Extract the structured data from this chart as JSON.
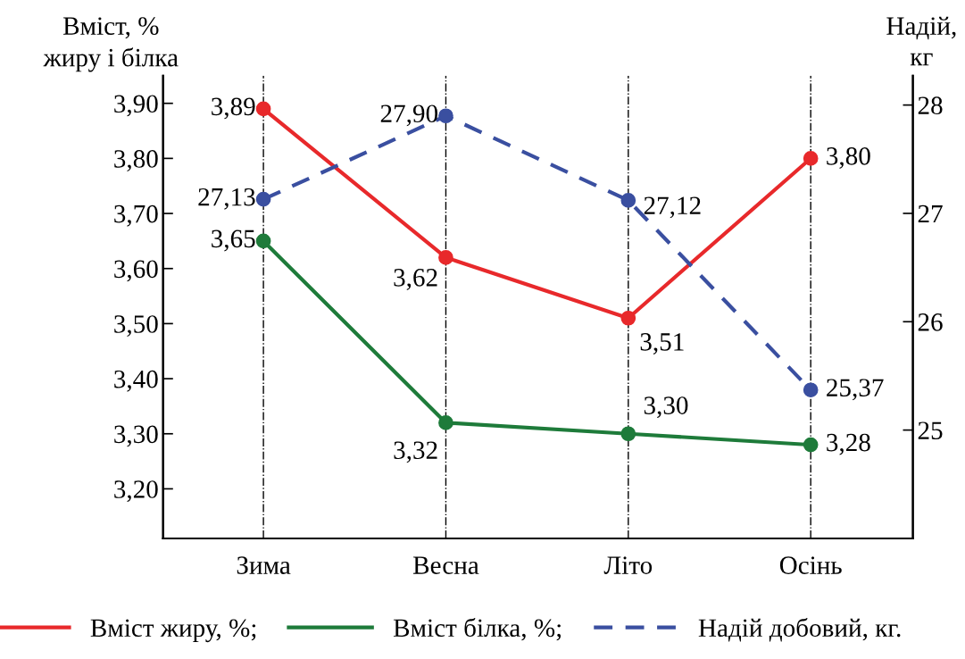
{
  "chart_data": {
    "type": "line",
    "categories": [
      "Зима",
      "Весна",
      "Літо",
      "Осінь"
    ],
    "ylabel": "Вміст, %\nжиру і білка",
    "y2label": "Надій,\nкг",
    "series": [
      {
        "name": "Вміст жиру, %;",
        "color": "#e8292b",
        "values": [
          3.89,
          3.62,
          3.51,
          3.8
        ],
        "value_labels": [
          "3,89",
          "3,62",
          "3,51",
          "3,80"
        ],
        "line_style": "solid"
      },
      {
        "name": "Вміст білка, %;",
        "color": "#1e7b3a",
        "values": [
          3.65,
          3.32,
          3.3,
          3.28
        ],
        "value_labels": [
          "3,65",
          "3,32",
          "3,30",
          "3,28"
        ],
        "line_style": "solid"
      },
      {
        "name": "Надій добовий, кг.",
        "color": "#3a4fa0",
        "values": [
          27.13,
          27.9,
          27.12,
          25.37
        ],
        "value_labels": [
          "27,13",
          "27,90",
          "27,12",
          "25,37"
        ],
        "line_style": "dashed",
        "axis": "y2"
      }
    ],
    "ylim": [
      3.11,
      3.95
    ],
    "yticks": [
      {
        "value": 3.2,
        "label": "3,20"
      },
      {
        "value": 3.3,
        "label": "3,30"
      },
      {
        "value": 3.4,
        "label": "3,40"
      },
      {
        "value": 3.5,
        "label": "3,50"
      },
      {
        "value": 3.6,
        "label": "3,60"
      },
      {
        "value": 3.7,
        "label": "3,70"
      },
      {
        "value": 3.8,
        "label": "3,80"
      },
      {
        "value": 3.9,
        "label": "3,90"
      }
    ],
    "y2lim": [
      24.0,
      28.27
    ],
    "y2ticks": [
      25,
      26,
      27,
      28
    ],
    "grid": "x",
    "marker": "circle",
    "legend": "bottom"
  }
}
